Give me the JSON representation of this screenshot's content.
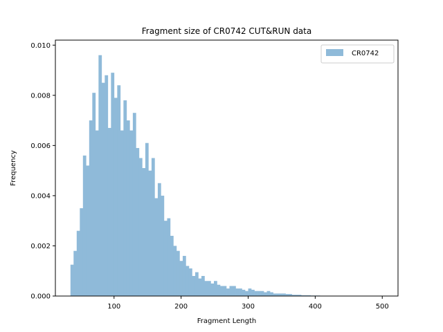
{
  "chart_data": {
    "type": "bar",
    "title": "Fragment size of CR0742 CUT&RUN data",
    "xlabel": "Fragment Length",
    "ylabel": "Frequency",
    "xlim": [
      12.5,
      523.5
    ],
    "ylim": [
      0,
      0.0102
    ],
    "x_ticks": [
      100,
      200,
      300,
      400,
      500
    ],
    "x_tick_labels": [
      "100",
      "200",
      "300",
      "400",
      "500"
    ],
    "y_ticks": [
      0.0,
      0.002,
      0.004,
      0.006,
      0.008,
      0.01
    ],
    "y_tick_labels": [
      "0.000",
      "0.002",
      "0.004",
      "0.006",
      "0.008",
      "0.010"
    ],
    "grid": false,
    "legend_position": "top-right",
    "series": [
      {
        "name": "CR0742",
        "color": "#8fbad9",
        "bin_start": 35,
        "bin_width": 4.65,
        "values": [
          0.00125,
          0.0018,
          0.0026,
          0.0035,
          0.0056,
          0.0052,
          0.007,
          0.0081,
          0.0066,
          0.0096,
          0.0085,
          0.0088,
          0.0067,
          0.0089,
          0.0079,
          0.0084,
          0.0066,
          0.0078,
          0.007,
          0.0066,
          0.0073,
          0.0059,
          0.0055,
          0.0051,
          0.0061,
          0.005,
          0.0055,
          0.0039,
          0.0045,
          0.004,
          0.003,
          0.0031,
          0.0024,
          0.002,
          0.0018,
          0.0014,
          0.0016,
          0.0012,
          0.0011,
          0.0008,
          0.00095,
          0.0007,
          0.0008,
          0.0006,
          0.0006,
          0.0005,
          0.0006,
          0.00045,
          0.0004,
          0.0004,
          0.0003,
          0.0004,
          0.0004,
          0.0003,
          0.0003,
          0.00025,
          0.0002,
          0.0003,
          0.00025,
          0.0002,
          0.0002,
          0.0002,
          0.00015,
          0.0002,
          0.00015,
          0.0001,
          0.0001,
          0.0001,
          0.0001,
          8e-05,
          8e-05,
          5e-05,
          5e-05,
          5e-05,
          3e-05,
          3e-05,
          3e-05,
          2e-05,
          2e-05,
          2e-05,
          1e-05,
          1e-05,
          1e-05,
          1e-05,
          1e-05,
          1e-05,
          1e-05,
          1e-05,
          1e-05,
          1e-05,
          1e-05,
          1e-05,
          1e-05,
          1e-05,
          1e-05,
          1e-05,
          1e-05,
          1e-05,
          1e-05,
          1e-05
        ]
      }
    ]
  }
}
